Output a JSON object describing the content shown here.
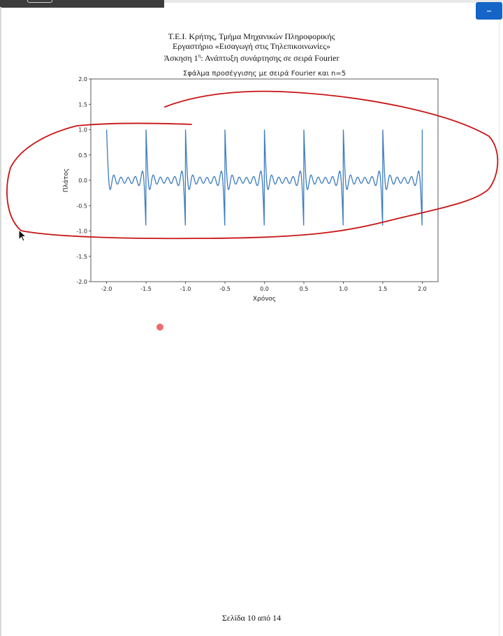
{
  "window": {
    "minimize_label": "–"
  },
  "header": {
    "line1": "Τ.Ε.Ι. Κρήτης, Τμήμα Μηχανικών Πληροφορικής",
    "line2": "Εργαστήριο «Εισαγωγή στις Τηλεπικοινωνίες»",
    "line3_prefix": "Άσκηση 1",
    "line3_sup": "η",
    "line3_rest": ": Ανάπτυξη συνάρτησης σε σειρά Fourier"
  },
  "chart_data": {
    "type": "line",
    "title": "Σφάλμα προσέγγισης με σειρά Fourier και n=5",
    "xlabel": "Χρόνος",
    "ylabel": "Πλάτος",
    "xlim": [
      -2.2,
      2.2
    ],
    "ylim": [
      -2.0,
      2.0
    ],
    "xticks": [
      "-2.0",
      "-1.5",
      "-1.0",
      "-0.5",
      "0.0",
      "0.5",
      "1.0",
      "1.5",
      "2.0"
    ],
    "yticks": [
      "2.0",
      "1.5",
      "1.0",
      "0.5",
      "0.0",
      "-0.5",
      "-1.0",
      "-1.5",
      "-2.0"
    ],
    "grid": false,
    "color": "#3b7bbf",
    "series": [
      {
        "function": "sawtooth(t) - 5-term Fourier series approximation",
        "period": 0.5,
        "harmonics": 5,
        "t_range": [
          -2.0,
          2.0
        ],
        "extrema": {
          "max": 1.0,
          "min": -1.0
        }
      }
    ]
  },
  "annotation": {
    "ink_color": "#c81414",
    "laser_color": "#ef6a6e"
  },
  "footer": {
    "page_label": "Σελίδα 10 από 14"
  }
}
